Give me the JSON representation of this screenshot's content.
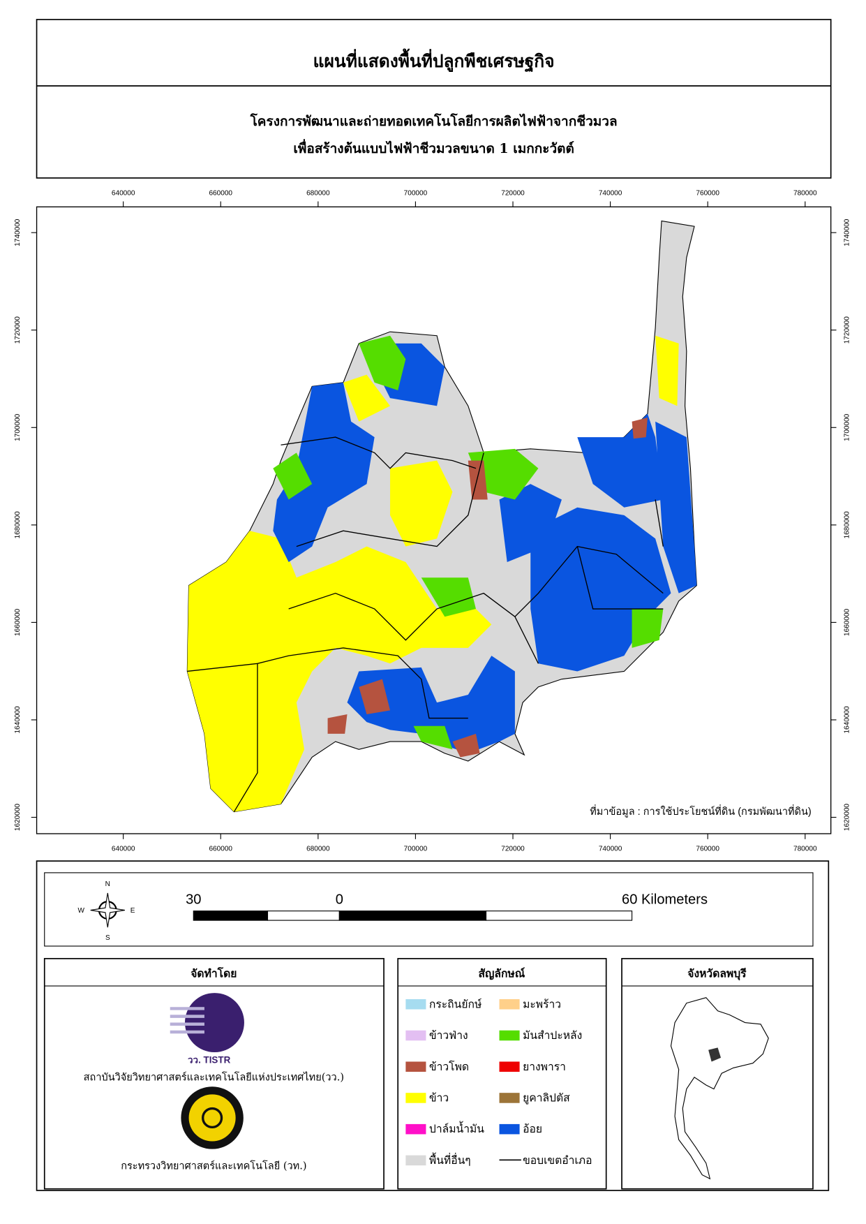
{
  "header": {
    "title": "แผนที่แสดงพื้นที่ปลูกพืชเศรษฐกิจ",
    "subtitle_lines": [
      "โครงการพัฒนาและถ่ายทอดเทคโนโลยีการผลิตไฟฟ้าจากชีวมวล",
      "เพื่อสร้างต้นแบบไฟฟ้าชีวมวลขนาด 1 เมกกะวัตต์"
    ]
  },
  "map": {
    "x_ticks": [
      640000,
      660000,
      680000,
      700000,
      720000,
      740000,
      760000,
      780000
    ],
    "y_ticks": [
      1620000,
      1640000,
      1660000,
      1680000,
      1700000,
      1720000,
      1740000
    ],
    "source_note": "ที่มาข้อมูล : การใช้ประโยชน์ที่ดิน  (กรมพัฒนาที่ดิน)"
  },
  "scale_bar": {
    "labels": [
      "30",
      "0",
      "60 Kilometers"
    ],
    "compass": {
      "n": "N",
      "s": "S",
      "e": "E",
      "w": "W"
    }
  },
  "producer": {
    "title": "จัดทำโดย",
    "logo_text": "วว. TISTR",
    "organizations": [
      "สถาบันวิจัยวิทยาศาสตร์และเทคโนโลยีแห่งประเทศไทย(วว.)",
      "กระทรวงวิทยาศาสตร์และเทคโนโลยี (วท.)"
    ]
  },
  "legend": {
    "title": "สัญลักษณ์",
    "items": [
      {
        "label": "กระถินยักษ์",
        "color": "#a6dcf0"
      },
      {
        "label": "ข้าวฟ่าง",
        "color": "#e3bff2"
      },
      {
        "label": "ข้าวโพด",
        "color": "#b5533f"
      },
      {
        "label": "ข้าว",
        "color": "#ffff00"
      },
      {
        "label": "ปาล์มน้ำมัน",
        "color": "#ff10c8"
      },
      {
        "label": "พื้นที่อื่นๆ",
        "color": "#d9d9d9"
      },
      {
        "label": "มะพร้าว",
        "color": "#ffd08a"
      },
      {
        "label": "มันสำปะหลัง",
        "color": "#55dd00"
      },
      {
        "label": "ยางพารา",
        "color": "#ee0000"
      },
      {
        "label": "ยูคาลิปตัส",
        "color": "#9c7438"
      },
      {
        "label": "อ้อย",
        "color": "#0a55e0"
      },
      {
        "label": "ขอบเขตอำเภอ",
        "color": "#000000",
        "symbol": "line"
      }
    ]
  },
  "inset": {
    "title": "จังหวัดลพบุรี"
  }
}
